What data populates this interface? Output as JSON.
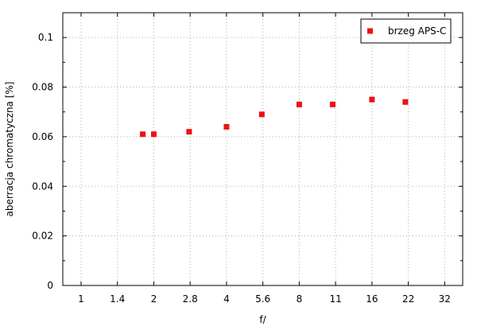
{
  "chart_data": {
    "type": "scatter",
    "xlabel": "f/",
    "ylabel": "aberracja chromatyczna [%]",
    "x_scale": "log2",
    "x_ticks": [
      "1",
      "1.4",
      "2",
      "2.8",
      "4",
      "5.6",
      "8",
      "11",
      "16",
      "22",
      "32"
    ],
    "x_tick_values": [
      1,
      1.414,
      2,
      2.828,
      4,
      5.657,
      8,
      11.31,
      16,
      22.63,
      32
    ],
    "xlim": [
      0.84,
      38
    ],
    "ylim": [
      0,
      0.11
    ],
    "y_ticks": [
      "0",
      "0.02",
      "0.04",
      "0.06",
      "0.08",
      "0.1"
    ],
    "y_tick_values": [
      0,
      0.02,
      0.04,
      0.06,
      0.08,
      0.1
    ],
    "grid": true,
    "legend_position": "top-right",
    "series": [
      {
        "name": "brzeg APS-C",
        "color": "#ee1111",
        "marker": "square",
        "points": [
          {
            "x": 1.8,
            "y": 0.061
          },
          {
            "x": 2.0,
            "y": 0.061
          },
          {
            "x": 2.8,
            "y": 0.062
          },
          {
            "x": 4.0,
            "y": 0.064
          },
          {
            "x": 5.6,
            "y": 0.069
          },
          {
            "x": 8.0,
            "y": 0.073
          },
          {
            "x": 11.0,
            "y": 0.073
          },
          {
            "x": 16.0,
            "y": 0.075
          },
          {
            "x": 22.0,
            "y": 0.074
          }
        ]
      }
    ]
  }
}
